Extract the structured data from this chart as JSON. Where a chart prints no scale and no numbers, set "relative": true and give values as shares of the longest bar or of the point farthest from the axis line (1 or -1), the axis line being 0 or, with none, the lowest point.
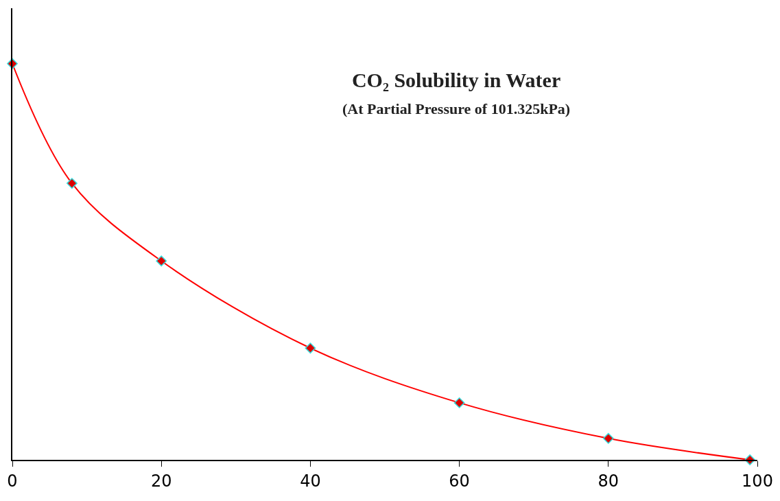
{
  "chart_data": {
    "type": "line",
    "title": "CO₂ Solubility in Water",
    "subtitle": "(At Partial Pressure of 101.325kPa)",
    "x": [
      0,
      8,
      20,
      40,
      60,
      80,
      99
    ],
    "series": [
      {
        "color": "#ff0000",
        "values": [
          1,
          0.698,
          0.502,
          0.282,
          0.144,
          0.054,
          0
        ]
      }
    ],
    "relative": true,
    "xlim": [
      0,
      100
    ],
    "xticks": [
      0,
      20,
      40,
      60,
      80,
      100
    ],
    "marker": "diamond",
    "line_style": "solid"
  }
}
